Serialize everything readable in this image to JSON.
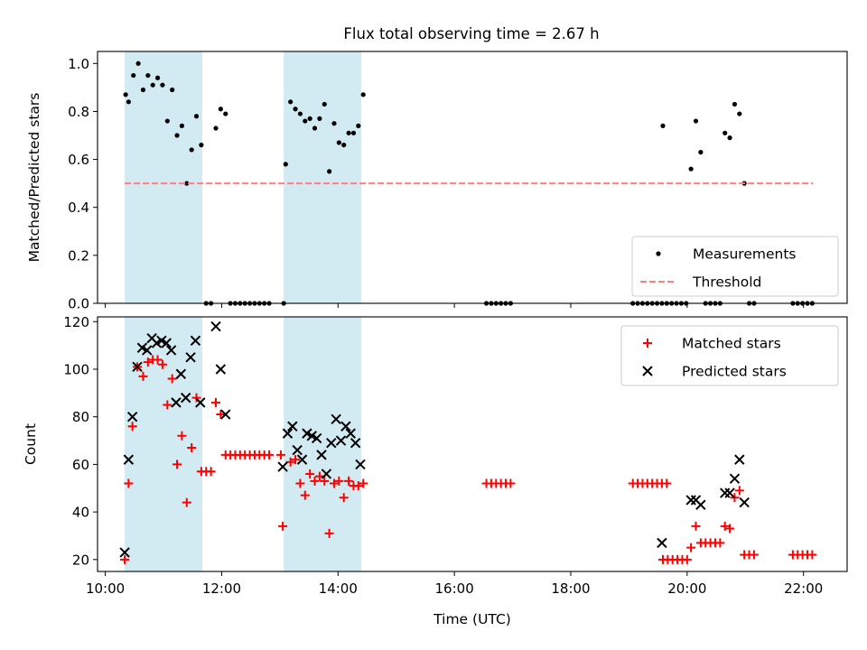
{
  "chart_data": [
    {
      "type": "scatter",
      "title": "Flux total observing time = 2.67 h",
      "ylabel": "Matched/Predicted stars",
      "xlabel": "",
      "x_unit": "time of day (HH:MM, UTC)",
      "xlim": [
        "09:52",
        "22:45"
      ],
      "ylim": [
        0.0,
        1.05
      ],
      "y_ticks": [
        0.0,
        0.2,
        0.4,
        0.6,
        0.8,
        1.0
      ],
      "y_tick_labels": [
        "0.0",
        "0.2",
        "0.4",
        "0.6",
        "0.8",
        "1.0"
      ],
      "shaded_intervals": [
        [
          "10:20",
          "11:40"
        ],
        [
          "13:04",
          "14:24"
        ]
      ],
      "shade_color": "#add8e6",
      "grid": false,
      "legend_position": "lower-right",
      "series": [
        {
          "name": "Measurements",
          "marker": "dot",
          "color": "#000000",
          "points": [
            [
              "10:21",
              0.87
            ],
            [
              "10:24",
              0.84
            ],
            [
              "10:29",
              0.95
            ],
            [
              "10:34",
              1.0
            ],
            [
              "10:39",
              0.89
            ],
            [
              "10:44",
              0.95
            ],
            [
              "10:49",
              0.91
            ],
            [
              "10:54",
              0.94
            ],
            [
              "10:59",
              0.91
            ],
            [
              "11:04",
              0.76
            ],
            [
              "11:09",
              0.89
            ],
            [
              "11:14",
              0.7
            ],
            [
              "11:19",
              0.74
            ],
            [
              "11:24",
              0.5
            ],
            [
              "11:29",
              0.64
            ],
            [
              "11:34",
              0.78
            ],
            [
              "11:39",
              0.66
            ],
            [
              "11:44",
              0.0
            ],
            [
              "11:49",
              0.0
            ],
            [
              "11:54",
              0.73
            ],
            [
              "11:59",
              0.81
            ],
            [
              "12:04",
              0.79
            ],
            [
              "12:09",
              0.0
            ],
            [
              "12:14",
              0.0
            ],
            [
              "12:19",
              0.0
            ],
            [
              "12:24",
              0.0
            ],
            [
              "12:29",
              0.0
            ],
            [
              "12:34",
              0.0
            ],
            [
              "12:39",
              0.0
            ],
            [
              "12:44",
              0.0
            ],
            [
              "12:49",
              0.0
            ],
            [
              "13:04",
              0.0
            ],
            [
              "13:06",
              0.58
            ],
            [
              "13:11",
              0.84
            ],
            [
              "13:16",
              0.81
            ],
            [
              "13:21",
              0.79
            ],
            [
              "13:26",
              0.76
            ],
            [
              "13:31",
              0.77
            ],
            [
              "13:36",
              0.73
            ],
            [
              "13:41",
              0.77
            ],
            [
              "13:46",
              0.83
            ],
            [
              "13:51",
              0.55
            ],
            [
              "13:56",
              0.75
            ],
            [
              "14:01",
              0.67
            ],
            [
              "14:06",
              0.66
            ],
            [
              "14:11",
              0.71
            ],
            [
              "14:16",
              0.71
            ],
            [
              "14:21",
              0.74
            ],
            [
              "14:26",
              0.87
            ],
            [
              "16:33",
              0.0
            ],
            [
              "16:38",
              0.0
            ],
            [
              "16:43",
              0.0
            ],
            [
              "16:48",
              0.0
            ],
            [
              "16:53",
              0.0
            ],
            [
              "16:58",
              0.0
            ],
            [
              "19:04",
              0.0
            ],
            [
              "19:09",
              0.0
            ],
            [
              "19:14",
              0.0
            ],
            [
              "19:19",
              0.0
            ],
            [
              "19:24",
              0.0
            ],
            [
              "19:29",
              0.0
            ],
            [
              "19:34",
              0.0
            ],
            [
              "19:39",
              0.0
            ],
            [
              "19:35",
              0.74
            ],
            [
              "19:44",
              0.0
            ],
            [
              "19:49",
              0.0
            ],
            [
              "19:54",
              0.0
            ],
            [
              "19:59",
              0.0
            ],
            [
              "20:04",
              0.56
            ],
            [
              "20:09",
              0.76
            ],
            [
              "20:14",
              0.63
            ],
            [
              "20:19",
              0.0
            ],
            [
              "20:24",
              0.0
            ],
            [
              "20:29",
              0.0
            ],
            [
              "20:34",
              0.0
            ],
            [
              "20:39",
              0.71
            ],
            [
              "20:44",
              0.69
            ],
            [
              "20:49",
              0.83
            ],
            [
              "20:54",
              0.79
            ],
            [
              "20:59",
              0.5
            ],
            [
              "21:04",
              0.0
            ],
            [
              "21:09",
              0.0
            ],
            [
              "21:49",
              0.0
            ],
            [
              "21:54",
              0.0
            ],
            [
              "21:59",
              0.0
            ],
            [
              "22:04",
              0.0
            ],
            [
              "22:09",
              0.0
            ]
          ]
        },
        {
          "name": "Threshold",
          "marker": "dashed-line",
          "color": "#ff7f7f",
          "points": [
            [
              "10:20",
              0.5
            ],
            [
              "22:10",
              0.5
            ]
          ]
        }
      ]
    },
    {
      "type": "scatter",
      "title": "",
      "ylabel": "Count",
      "xlabel": "Time (UTC)",
      "x_unit": "time of day (HH:MM, UTC)",
      "xlim": [
        "09:52",
        "22:45"
      ],
      "ylim": [
        15,
        122
      ],
      "y_ticks": [
        20,
        40,
        60,
        80,
        100,
        120
      ],
      "y_tick_labels": [
        "20",
        "40",
        "60",
        "80",
        "100",
        "120"
      ],
      "x_ticks": [
        "10:00",
        "12:00",
        "14:00",
        "16:00",
        "18:00",
        "20:00",
        "22:00"
      ],
      "x_tick_labels": [
        "10:00",
        "12:00",
        "14:00",
        "16:00",
        "18:00",
        "20:00",
        "22:00"
      ],
      "shaded_intervals": [
        [
          "10:20",
          "11:40"
        ],
        [
          "13:04",
          "14:24"
        ]
      ],
      "shade_color": "#add8e6",
      "grid": false,
      "legend_position": "upper-right",
      "series": [
        {
          "name": "Matched stars",
          "marker": "plus",
          "color": "#ff0000",
          "points": [
            [
              "10:20",
              20
            ],
            [
              "10:24",
              52
            ],
            [
              "10:28",
              76
            ],
            [
              "10:33",
              101
            ],
            [
              "10:39",
              97
            ],
            [
              "10:44",
              103
            ],
            [
              "10:49",
              104
            ],
            [
              "10:54",
              104
            ],
            [
              "10:59",
              102
            ],
            [
              "11:04",
              85
            ],
            [
              "11:09",
              96
            ],
            [
              "11:14",
              60
            ],
            [
              "11:19",
              72
            ],
            [
              "11:24",
              44
            ],
            [
              "11:29",
              67
            ],
            [
              "11:34",
              88
            ],
            [
              "11:39",
              57
            ],
            [
              "11:44",
              57
            ],
            [
              "11:49",
              57
            ],
            [
              "11:54",
              86
            ],
            [
              "11:59",
              81
            ],
            [
              "12:04",
              64
            ],
            [
              "12:09",
              64
            ],
            [
              "12:14",
              64
            ],
            [
              "12:19",
              64
            ],
            [
              "12:24",
              64
            ],
            [
              "12:29",
              64
            ],
            [
              "12:34",
              64
            ],
            [
              "12:39",
              64
            ],
            [
              "12:44",
              64
            ],
            [
              "12:49",
              64
            ],
            [
              "13:01",
              64
            ],
            [
              "13:03",
              34
            ],
            [
              "13:11",
              61
            ],
            [
              "13:16",
              62
            ],
            [
              "13:21",
              52
            ],
            [
              "13:26",
              47
            ],
            [
              "13:31",
              56
            ],
            [
              "13:36",
              53
            ],
            [
              "13:41",
              55
            ],
            [
              "13:46",
              53
            ],
            [
              "13:51",
              31
            ],
            [
              "13:56",
              52
            ],
            [
              "14:01",
              53
            ],
            [
              "14:06",
              46
            ],
            [
              "14:11",
              53
            ],
            [
              "14:16",
              51
            ],
            [
              "14:21",
              51
            ],
            [
              "14:26",
              52
            ],
            [
              "16:33",
              52
            ],
            [
              "16:38",
              52
            ],
            [
              "16:43",
              52
            ],
            [
              "16:48",
              52
            ],
            [
              "16:53",
              52
            ],
            [
              "16:58",
              52
            ],
            [
              "19:04",
              52
            ],
            [
              "19:09",
              52
            ],
            [
              "19:14",
              52
            ],
            [
              "19:19",
              52
            ],
            [
              "19:24",
              52
            ],
            [
              "19:29",
              52
            ],
            [
              "19:34",
              52
            ],
            [
              "19:39",
              52
            ],
            [
              "19:35",
              20
            ],
            [
              "19:40",
              20
            ],
            [
              "19:45",
              20
            ],
            [
              "19:50",
              20
            ],
            [
              "19:55",
              20
            ],
            [
              "20:00",
              20
            ],
            [
              "20:04",
              25
            ],
            [
              "20:09",
              34
            ],
            [
              "20:14",
              27
            ],
            [
              "20:19",
              27
            ],
            [
              "20:24",
              27
            ],
            [
              "20:29",
              27
            ],
            [
              "20:34",
              27
            ],
            [
              "20:39",
              34
            ],
            [
              "20:44",
              33
            ],
            [
              "20:49",
              46
            ],
            [
              "20:54",
              49
            ],
            [
              "20:59",
              22
            ],
            [
              "21:04",
              22
            ],
            [
              "21:09",
              22
            ],
            [
              "21:49",
              22
            ],
            [
              "21:54",
              22
            ],
            [
              "21:59",
              22
            ],
            [
              "22:04",
              22
            ],
            [
              "22:09",
              22
            ]
          ]
        },
        {
          "name": "Predicted stars",
          "marker": "x",
          "color": "#000000",
          "points": [
            [
              "10:20",
              23
            ],
            [
              "10:24",
              62
            ],
            [
              "10:28",
              80
            ],
            [
              "10:33",
              101
            ],
            [
              "10:38",
              109
            ],
            [
              "10:43",
              108
            ],
            [
              "10:48",
              113
            ],
            [
              "10:53",
              111
            ],
            [
              "10:58",
              112
            ],
            [
              "11:03",
              111
            ],
            [
              "11:08",
              108
            ],
            [
              "11:13",
              86
            ],
            [
              "11:18",
              98
            ],
            [
              "11:23",
              88
            ],
            [
              "11:28",
              105
            ],
            [
              "11:33",
              112
            ],
            [
              "11:38",
              86
            ],
            [
              "11:54",
              118
            ],
            [
              "11:59",
              100
            ],
            [
              "12:04",
              81
            ],
            [
              "13:03",
              59
            ],
            [
              "13:08",
              73
            ],
            [
              "13:13",
              76
            ],
            [
              "13:18",
              66
            ],
            [
              "13:23",
              62
            ],
            [
              "13:28",
              73
            ],
            [
              "13:33",
              72
            ],
            [
              "13:38",
              71
            ],
            [
              "13:43",
              64
            ],
            [
              "13:48",
              56
            ],
            [
              "13:53",
              69
            ],
            [
              "13:58",
              79
            ],
            [
              "14:03",
              70
            ],
            [
              "14:08",
              76
            ],
            [
              "14:13",
              73
            ],
            [
              "14:18",
              69
            ],
            [
              "14:23",
              60
            ],
            [
              "19:34",
              27
            ],
            [
              "20:04",
              45
            ],
            [
              "20:09",
              45
            ],
            [
              "20:14",
              43
            ],
            [
              "20:39",
              48
            ],
            [
              "20:44",
              48
            ],
            [
              "20:49",
              54
            ],
            [
              "20:54",
              62
            ],
            [
              "20:59",
              44
            ]
          ]
        }
      ]
    }
  ]
}
